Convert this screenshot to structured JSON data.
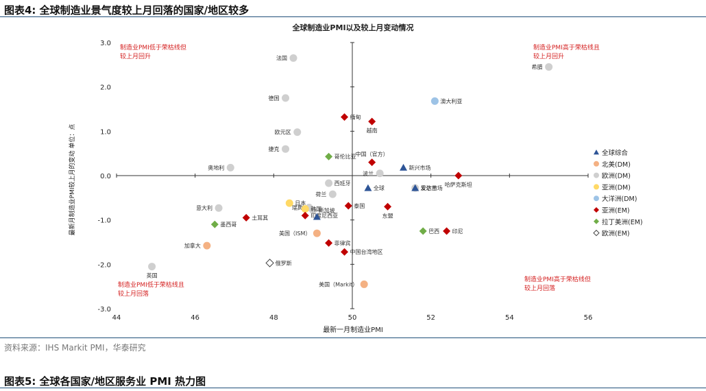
{
  "figure_title": "图表4:  全球制造业景气度较上月回落的国家/地区较多",
  "source_note": "资料来源：IHS Markit PMI，华泰研究",
  "next_figure_title": "图表5:  全球各国家/地区服务业 PMI 热力图",
  "colors": {
    "rule": "#1f4e79",
    "quadrant_text": "#d42020",
    "axis": "#333333",
    "groups": {
      "全球综合": "#2e5597",
      "北美(DM)": "#f4b183",
      "欧洲(DM)": "#cfcfcf",
      "亚洲(DM)": "#ffd966",
      "大洋洲(DM)": "#9dc3e6",
      "亚洲(EM)": "#c00000",
      "拉丁美洲(EM)": "#70ad47",
      "欧洲(EM)": "#ffffff"
    }
  },
  "chart_data": {
    "type": "scatter",
    "title": "全球制造业PMI以及较上月变动情况",
    "xlabel": "最新一月制造业PMI",
    "ylabel": "最新月制造业PMI较上月的变动  单位：点",
    "xlim": [
      44,
      56
    ],
    "ylim": [
      -3,
      3
    ],
    "xticks": [
      44,
      46,
      48,
      50,
      52,
      54,
      56
    ],
    "yticks": [
      -3.0,
      -2.0,
      -1.0,
      0.0,
      1.0,
      2.0,
      3.0
    ],
    "ytick_labels": [
      "-3.0",
      "-2.0",
      "-1.0",
      "0.0",
      "1.0",
      "2.0",
      "3.0"
    ],
    "crosshair": {
      "x": 50,
      "y": 0
    },
    "quadrant_labels": {
      "top_left": [
        "制造业PMI低于荣枯线但",
        "较上月回升"
      ],
      "top_right": [
        "制造业PMI高于荣枯线且",
        "较上月回升"
      ],
      "bottom_left": [
        "制造业PMI低于荣枯线且",
        "较上月回落"
      ],
      "bottom_right": [
        "制造业PMI高于荣枯线但",
        "较上月回落"
      ]
    },
    "legend_position": "right",
    "legend": [
      {
        "group": "全球综合",
        "label": "全球综合",
        "marker": "triangle"
      },
      {
        "group": "北美(DM)",
        "label": "北美(DM)",
        "marker": "circle"
      },
      {
        "group": "欧洲(DM)",
        "label": "欧洲(DM)",
        "marker": "circle"
      },
      {
        "group": "亚洲(DM)",
        "label": "亚洲(DM)",
        "marker": "circle"
      },
      {
        "group": "大洋洲(DM)",
        "label": "大洋洲(DM)",
        "marker": "circle"
      },
      {
        "group": "亚洲(EM)",
        "label": "亚洲(EM)",
        "marker": "diamond"
      },
      {
        "group": "拉丁美洲(EM)",
        "label": "拉丁美洲(EM)",
        "marker": "diamond"
      },
      {
        "group": "欧洲(EM)",
        "label": "欧洲(EM)",
        "marker": "diamond-open"
      }
    ],
    "points": [
      {
        "label": "法国",
        "x": 48.5,
        "y": 2.65,
        "group": "欧洲(DM)",
        "label_pos": "left"
      },
      {
        "label": "德国",
        "x": 48.3,
        "y": 1.75,
        "group": "欧洲(DM)",
        "label_pos": "left"
      },
      {
        "label": "欧元区",
        "x": 48.6,
        "y": 0.98,
        "group": "欧洲(DM)",
        "label_pos": "left"
      },
      {
        "label": "捷克",
        "x": 48.3,
        "y": 0.6,
        "group": "欧洲(DM)",
        "label_pos": "left"
      },
      {
        "label": "奥地利",
        "x": 46.9,
        "y": 0.18,
        "group": "欧洲(DM)",
        "label_pos": "left"
      },
      {
        "label": "希腊",
        "x": 55.0,
        "y": 2.45,
        "group": "欧洲(DM)",
        "label_pos": "left"
      },
      {
        "label": "西班牙",
        "x": 49.4,
        "y": -0.17,
        "group": "欧洲(DM)",
        "label_pos": "right"
      },
      {
        "label": "荷兰",
        "x": 49.5,
        "y": -0.42,
        "group": "欧洲(DM)",
        "label_pos": "left"
      },
      {
        "label": "意大利",
        "x": 46.6,
        "y": -0.73,
        "group": "欧洲(DM)",
        "label_pos": "left"
      },
      {
        "label": "英国",
        "x": 44.9,
        "y": -2.05,
        "group": "欧洲(DM)",
        "label_pos": "below"
      },
      {
        "label": "波兰",
        "x": 50.7,
        "y": 0.05,
        "group": "欧洲(DM)",
        "label_pos": "left"
      },
      {
        "label": "瑞典",
        "x": 48.9,
        "y": -0.72,
        "group": "欧洲(DM)",
        "label_pos": "left"
      },
      {
        "label": "新加坡",
        "x": 49.0,
        "y": -0.78,
        "group": "欧洲(DM)",
        "label_pos": "right"
      },
      {
        "label": "爱尔兰",
        "x": 51.6,
        "y": -0.28,
        "group": "欧洲(DM)",
        "label_pos": "right"
      },
      {
        "label": "澳大利亚",
        "x": 52.1,
        "y": 1.68,
        "group": "大洋洲(DM)",
        "label_pos": "right"
      },
      {
        "label": "日本",
        "x": 48.4,
        "y": -0.62,
        "group": "亚洲(DM)",
        "label_pos": "right"
      },
      {
        "label": "韩国",
        "x": 48.8,
        "y": -0.75,
        "group": "亚洲(DM)",
        "label_pos": "right"
      },
      {
        "label": "加拿大",
        "x": 46.3,
        "y": -1.58,
        "group": "北美(DM)",
        "label_pos": "left"
      },
      {
        "label": "美国（ISM）",
        "x": 49.1,
        "y": -1.3,
        "group": "北美(DM)",
        "label_pos": "left"
      },
      {
        "label": "美国（Markit）",
        "x": 50.3,
        "y": -2.45,
        "group": "北美(DM)",
        "label_pos": "left"
      },
      {
        "label": "缅甸",
        "x": 49.8,
        "y": 1.32,
        "group": "亚洲(EM)",
        "label_pos": "right"
      },
      {
        "label": "越南",
        "x": 50.5,
        "y": 1.22,
        "group": "亚洲(EM)",
        "label_pos": "below"
      },
      {
        "label": "中国（官方）",
        "x": 50.5,
        "y": 0.3,
        "group": "亚洲(EM)",
        "label_pos": "above"
      },
      {
        "label": "哈萨克斯坦",
        "x": 52.7,
        "y": 0.0,
        "group": "亚洲(EM)",
        "label_pos": "below"
      },
      {
        "label": "土耳其",
        "x": 47.3,
        "y": -0.95,
        "group": "亚洲(EM)",
        "label_pos": "right"
      },
      {
        "label": "泰国",
        "x": 49.9,
        "y": -0.68,
        "group": "亚洲(EM)",
        "label_pos": "right"
      },
      {
        "label": "东盟",
        "x": 50.9,
        "y": -0.7,
        "group": "亚洲(EM)",
        "label_pos": "below"
      },
      {
        "label": "印度尼西亚",
        "x": 48.8,
        "y": -0.9,
        "group": "亚洲(EM)",
        "label_pos": "right"
      },
      {
        "label": "菲律宾",
        "x": 49.4,
        "y": -1.52,
        "group": "亚洲(EM)",
        "label_pos": "right"
      },
      {
        "label": "中国台湾地区",
        "x": 49.8,
        "y": -1.72,
        "group": "亚洲(EM)",
        "label_pos": "right"
      },
      {
        "label": "印尼",
        "x": 52.4,
        "y": -1.25,
        "group": "亚洲(EM)",
        "label_pos": "right"
      },
      {
        "label": "哥伦比亚",
        "x": 49.4,
        "y": 0.43,
        "group": "拉丁美洲(EM)",
        "label_pos": "right"
      },
      {
        "label": "墨西哥",
        "x": 46.5,
        "y": -1.1,
        "group": "拉丁美洲(EM)",
        "label_pos": "right"
      },
      {
        "label": "巴西",
        "x": 51.8,
        "y": -1.25,
        "group": "拉丁美洲(EM)",
        "label_pos": "right"
      },
      {
        "label": "俄罗斯",
        "x": 47.9,
        "y": -1.97,
        "group": "欧洲(EM)",
        "label_pos": "right"
      },
      {
        "label": "全球",
        "x": 50.4,
        "y": -0.28,
        "group": "全球综合",
        "label_pos": "right"
      },
      {
        "label": "新兴市场",
        "x": 51.3,
        "y": 0.18,
        "group": "全球综合",
        "label_pos": "right"
      },
      {
        "label": "发达市场",
        "x": 51.6,
        "y": -0.28,
        "group": "全球综合",
        "label_pos": "right"
      },
      {
        "label": "",
        "x": 49.1,
        "y": -0.93,
        "group": "全球综合",
        "label_pos": "none"
      }
    ]
  }
}
